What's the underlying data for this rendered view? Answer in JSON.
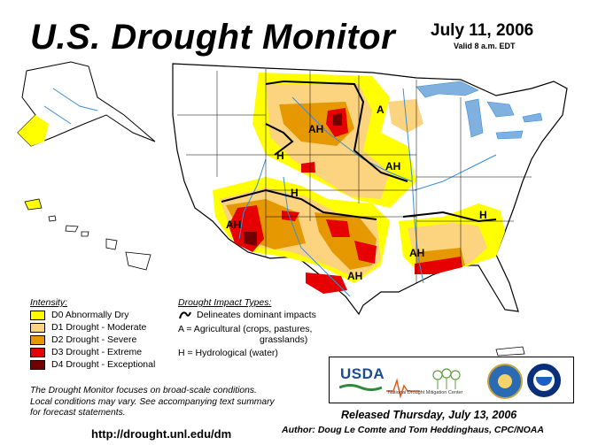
{
  "header": {
    "title": "U.S. Drought Monitor",
    "date": "July 11, 2006",
    "valid": "Valid 8 a.m. EDT"
  },
  "legend": {
    "intensity_title": "Intensity:",
    "items": [
      {
        "label": "D0 Abnormally Dry",
        "color": "#ffff00"
      },
      {
        "label": "D1 Drought - Moderate",
        "color": "#fcd37f"
      },
      {
        "label": "D2 Drought - Severe",
        "color": "#e69800"
      },
      {
        "label": "D3 Drought - Extreme",
        "color": "#e60000"
      },
      {
        "label": "D4 Drought - Exceptional",
        "color": "#730000"
      }
    ]
  },
  "impacts": {
    "title": "Drought Impact Types:",
    "line1": "Delineates dominant impacts",
    "line2": "A = Agricultural (crops, pastures,",
    "line3": "grasslands)",
    "line4": "H = Hydrological (water)"
  },
  "map_labels": [
    "AH",
    "AH",
    "A",
    "AH",
    "H",
    "H",
    "AH",
    "AH",
    "AH",
    "H",
    "AH"
  ],
  "footnote": {
    "line1": "The Drought Monitor focuses on broad-scale conditions.",
    "line2": "Local conditions may vary. See accompanying text summary",
    "line3": "for forecast statements."
  },
  "footer": {
    "url": "http://drought.unl.edu/dm",
    "released": "Released Thursday, July 13, 2006",
    "authors": "Author:  Doug Le Comte and Tom Heddinghaus, CPC/NOAA"
  },
  "logos": {
    "usda": "USDA",
    "ndmc": "National Drought Mitigation Center"
  },
  "colors": {
    "water": "#3b8fd6",
    "lake": "#7fb0e0",
    "state_border": "#000000"
  }
}
